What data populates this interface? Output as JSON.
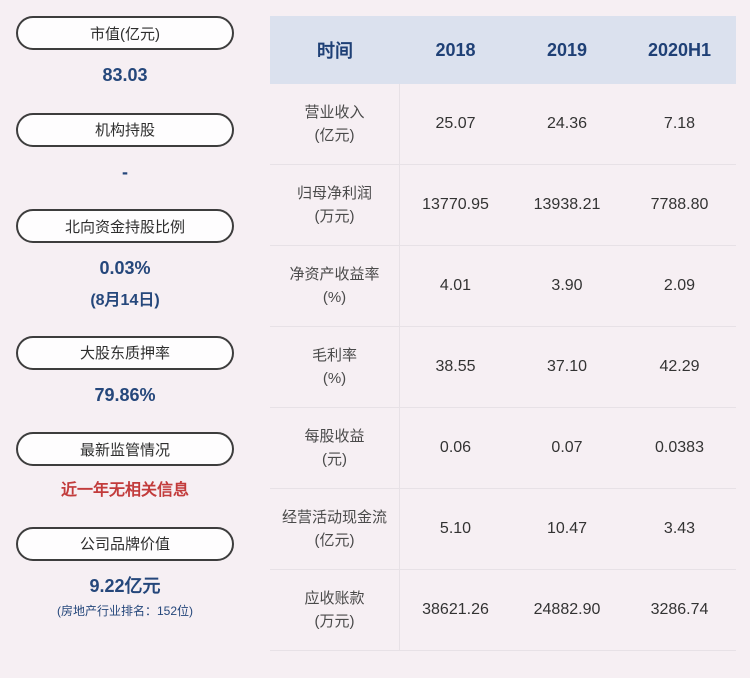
{
  "sidebar": {
    "items": [
      {
        "label": "市值(亿元)",
        "value": "83.03"
      },
      {
        "label": "机构持股",
        "value": "-"
      },
      {
        "label": "北向资金持股比例",
        "value": "0.03%",
        "sub": "(8月14日)"
      },
      {
        "label": "大股东质押率",
        "value": "79.86%"
      },
      {
        "label": "最新监管情况",
        "value": "近一年无相关信息"
      },
      {
        "label": "公司品牌价值",
        "value": "9.22亿元",
        "sub": "(房地产行业排名：152位)"
      }
    ]
  },
  "table": {
    "columns": [
      "时间",
      "2018",
      "2019",
      "2020H1"
    ],
    "rows": [
      {
        "name": "营业收入",
        "unit": "(亿元)",
        "values": [
          "25.07",
          "24.36",
          "7.18"
        ]
      },
      {
        "name": "归母净利润",
        "unit": "(万元)",
        "values": [
          "13770.95",
          "13938.21",
          "7788.80"
        ]
      },
      {
        "name": "净资产收益率",
        "unit": "(%)",
        "values": [
          "4.01",
          "3.90",
          "2.09"
        ]
      },
      {
        "name": "毛利率",
        "unit": "(%)",
        "values": [
          "38.55",
          "37.10",
          "42.29"
        ]
      },
      {
        "name": "每股收益",
        "unit": "(元)",
        "values": [
          "0.06",
          "0.07",
          "0.0383"
        ]
      },
      {
        "name": "经营活动现金流",
        "unit": "(亿元)",
        "values": [
          "5.10",
          "10.47",
          "3.43"
        ]
      },
      {
        "name": "应收账款",
        "unit": "(万元)",
        "values": [
          "38621.26",
          "24882.90",
          "3286.74"
        ]
      }
    ]
  },
  "colors": {
    "page_bg": "#f6eff3",
    "header_bg": "#dbe1ee",
    "accent_blue": "#25477b",
    "alert_red": "#c23b3b"
  }
}
